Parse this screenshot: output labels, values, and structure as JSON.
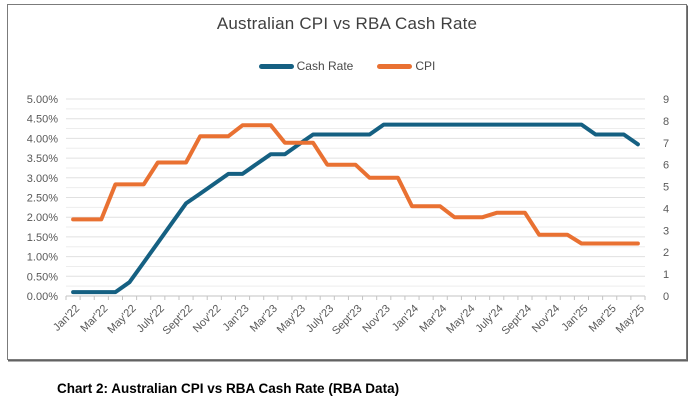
{
  "chart": {
    "title": "Australian CPI vs RBA Cash Rate",
    "legend": {
      "position": "top",
      "items": [
        {
          "label": "Cash Rate",
          "color": "#156082"
        },
        {
          "label": "CPI",
          "color": "#E97132"
        }
      ]
    }
  },
  "caption": "Chart 2: Australian CPI vs RBA Cash Rate (RBA Data)",
  "chart_data": {
    "type": "line",
    "title": "Australian CPI vs RBA Cash Rate",
    "x_tick_labels": [
      "Jan'22",
      "Mar'22",
      "May'22",
      "July'22",
      "Sept'22",
      "Nov'22",
      "Jan'23",
      "Mar'23",
      "May'23",
      "July'23",
      "Sept'23",
      "Nov'23",
      "Jan'24",
      "Mar'24",
      "May'24",
      "July'24",
      "Sept'24",
      "Nov'24",
      "Jan'25",
      "Mar'25",
      "May'25"
    ],
    "x_label_every_n_points": 2,
    "n_points": 41,
    "grid": "horizontal-only",
    "left_axis": {
      "min": 0,
      "max": 5,
      "major_step": 0.5,
      "minor_step": 0.25,
      "format": "percent-2dp",
      "tick_labels": [
        "0.00%",
        "0.50%",
        "1.00%",
        "1.50%",
        "2.00%",
        "2.50%",
        "3.00%",
        "3.50%",
        "4.00%",
        "4.50%",
        "5.00%"
      ]
    },
    "right_axis": {
      "min": 0,
      "max": 9,
      "major_step": 1,
      "tick_labels": [
        "0",
        "1",
        "2",
        "3",
        "4",
        "5",
        "6",
        "7",
        "8",
        "9"
      ]
    },
    "series": [
      {
        "name": "Cash Rate",
        "axis": "left",
        "color": "#156082",
        "unit": "%",
        "values": [
          0.1,
          0.1,
          0.1,
          0.1,
          0.35,
          0.85,
          1.35,
          1.85,
          2.35,
          2.6,
          2.85,
          3.1,
          3.1,
          3.35,
          3.6,
          3.6,
          3.85,
          4.1,
          4.1,
          4.1,
          4.1,
          4.1,
          4.35,
          4.35,
          4.35,
          4.35,
          4.35,
          4.35,
          4.35,
          4.35,
          4.35,
          4.35,
          4.35,
          4.35,
          4.35,
          4.35,
          4.35,
          4.1,
          4.1,
          4.1,
          3.85
        ]
      },
      {
        "name": "CPI",
        "axis": "right",
        "color": "#E97132",
        "unit": "%yoy",
        "values": [
          3.5,
          3.5,
          3.5,
          5.1,
          5.1,
          5.1,
          6.1,
          6.1,
          6.1,
          7.3,
          7.3,
          7.3,
          7.8,
          7.8,
          7.8,
          7.0,
          7.0,
          7.0,
          6.0,
          6.0,
          6.0,
          5.4,
          5.4,
          5.4,
          4.1,
          4.1,
          4.1,
          3.6,
          3.6,
          3.6,
          3.8,
          3.8,
          3.8,
          2.8,
          2.8,
          2.8,
          2.4,
          2.4,
          2.4,
          2.4,
          2.4
        ]
      }
    ]
  },
  "style": {
    "grid_minor": "#ededed",
    "grid_major": "#e0e0e0",
    "axis_line": "#c3c3c3",
    "tick_color": "#c3c3c3",
    "label_color": "#595959",
    "title_color": "#404040",
    "line_width": 4
  }
}
